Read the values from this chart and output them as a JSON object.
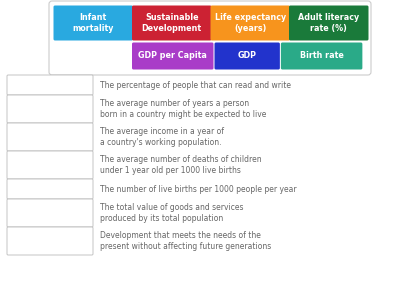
{
  "background_color": "#ffffff",
  "buttons_row1": [
    {
      "label": "Infant\nmortality",
      "color": "#29a9e0"
    },
    {
      "label": "Sustainable\nDevelopment",
      "color": "#cc2233"
    },
    {
      "label": "Life expectancy\n(years)",
      "color": "#f7941d"
    },
    {
      "label": "Adult literacy\nrate (%)",
      "color": "#1a7a3a"
    }
  ],
  "buttons_row2": [
    {
      "label": "GDP per Capita",
      "color": "#a93cc8"
    },
    {
      "label": "GDP",
      "color": "#2233cc"
    },
    {
      "label": "Birth rate",
      "color": "#2aaa88"
    }
  ],
  "definitions": [
    {
      "text": "The percentage of people that can read and write",
      "lines": 1
    },
    {
      "text": "The average number of years a person\nborn in a country might be expected to live",
      "lines": 2
    },
    {
      "text": "The average income in a year of\na country's working population.",
      "lines": 2
    },
    {
      "text": "The average number of deaths of children\nunder 1 year old per 1000 live births",
      "lines": 2
    },
    {
      "text": "The number of live births per 1000 people per year",
      "lines": 1
    },
    {
      "text": "The total value of goods and services\nproduced by its total population",
      "lines": 2
    },
    {
      "text": "Development that meets the needs of the\npresent without affecting future generations",
      "lines": 2
    }
  ],
  "text_color": "#666666",
  "button_text_color": "#ffffff",
  "box_edge_color": "#bbbbbb"
}
